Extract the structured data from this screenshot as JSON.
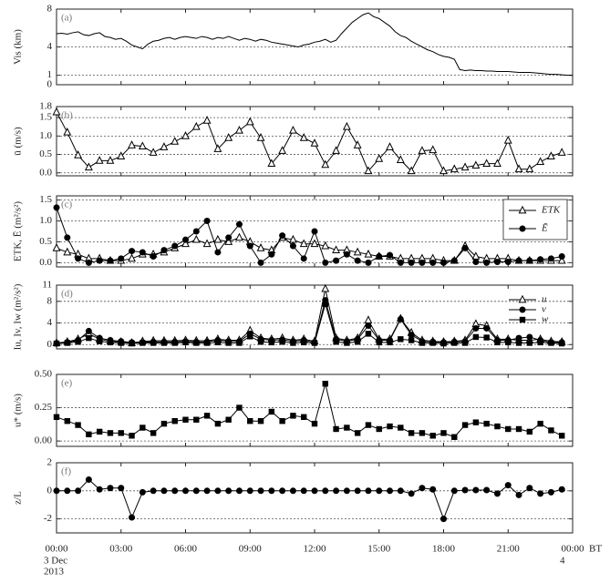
{
  "x_axis": {
    "xlim": [
      0,
      24
    ],
    "xticks": [
      {
        "value": 0,
        "label": "00:00"
      },
      {
        "value": 3,
        "label": "03:00"
      },
      {
        "value": 6,
        "label": "06:00"
      },
      {
        "value": 9,
        "label": "09:00"
      },
      {
        "value": 12,
        "label": "12:00"
      },
      {
        "value": 15,
        "label": "15:00"
      },
      {
        "value": 18,
        "label": "18:00"
      },
      {
        "value": 21,
        "label": "21:00"
      },
      {
        "value": 24,
        "label": "00:00"
      }
    ],
    "start_day": "3 Dec",
    "start_year": "2013",
    "end_day": "4",
    "unit": "BT"
  },
  "chart_data": [
    {
      "type": "line",
      "panel": "(a)",
      "ylabel": "Vis (km)",
      "color": "#000000",
      "ylim": [
        0,
        8
      ],
      "yticks": [
        0,
        1,
        4,
        8
      ],
      "grid": true,
      "x": [
        0,
        0.25,
        0.5,
        0.75,
        1,
        1.25,
        1.5,
        1.75,
        2,
        2.25,
        2.5,
        2.75,
        3,
        3.25,
        3.5,
        3.75,
        4,
        4.25,
        4.5,
        4.75,
        5,
        5.25,
        5.5,
        5.75,
        6,
        6.25,
        6.5,
        6.75,
        7,
        7.25,
        7.5,
        7.75,
        8,
        8.25,
        8.5,
        8.75,
        9,
        9.25,
        9.5,
        9.75,
        10,
        10.25,
        10.5,
        10.75,
        11,
        11.25,
        11.5,
        11.75,
        12,
        12.25,
        12.5,
        12.75,
        13,
        13.25,
        13.5,
        13.75,
        14,
        14.25,
        14.5,
        14.75,
        15,
        15.25,
        15.5,
        15.75,
        16,
        16.25,
        16.5,
        16.75,
        17,
        17.25,
        17.5,
        17.75,
        18,
        18.25,
        18.5,
        18.75,
        19,
        19.25,
        19.5,
        19.75,
        20,
        20.25,
        20.5,
        20.75,
        21,
        21.25,
        21.5,
        21.75,
        22,
        22.25,
        22.5,
        22.75,
        23,
        23.25,
        23.5,
        23.75,
        24
      ],
      "values": [
        5.4,
        5.45,
        5.35,
        5.5,
        5.6,
        5.3,
        5.2,
        5.4,
        5.5,
        5.1,
        5.0,
        4.8,
        4.9,
        4.6,
        4.2,
        4.0,
        3.8,
        4.3,
        4.6,
        4.7,
        4.9,
        5.0,
        4.8,
        5.0,
        5.1,
        5.0,
        4.9,
        5.1,
        5.0,
        4.8,
        5.0,
        4.9,
        5.1,
        4.9,
        4.7,
        4.9,
        4.8,
        4.6,
        4.8,
        4.7,
        4.5,
        4.4,
        4.3,
        4.2,
        4.1,
        4.0,
        4.2,
        4.3,
        4.5,
        4.6,
        4.8,
        4.5,
        4.7,
        5.4,
        6.0,
        6.6,
        7.0,
        7.4,
        7.6,
        7.2,
        7.0,
        6.6,
        6.2,
        5.6,
        5.2,
        5.0,
        4.6,
        4.3,
        4.0,
        3.7,
        3.5,
        3.2,
        3.0,
        2.9,
        2.7,
        1.6,
        1.5,
        1.55,
        1.5,
        1.5,
        1.45,
        1.45,
        1.4,
        1.4,
        1.4,
        1.35,
        1.3,
        1.3,
        1.3,
        1.25,
        1.2,
        1.15,
        1.1,
        1.1,
        1.05,
        1.0,
        1.0
      ]
    },
    {
      "type": "line",
      "panel": "(b)",
      "ylabel": "ū (m/s)",
      "color": "#000000",
      "marker": "triangle",
      "ylim": [
        -0.08,
        1.8
      ],
      "yticks": [
        {
          "value": 0,
          "label": "0.0"
        },
        {
          "value": 0.5,
          "label": "0.5"
        },
        {
          "value": 1,
          "label": "1.0"
        },
        {
          "value": 1.5,
          "label": "1.5"
        },
        {
          "value": 1.8,
          "label": "1.8"
        }
      ],
      "grid": true,
      "x": [
        0,
        0.5,
        1,
        1.5,
        2,
        2.5,
        3,
        3.5,
        4,
        4.5,
        5,
        5.5,
        6,
        6.5,
        7,
        7.5,
        8,
        8.5,
        9,
        9.5,
        10,
        10.5,
        11,
        11.5,
        12,
        12.5,
        13,
        13.5,
        14,
        14.5,
        15,
        15.5,
        16,
        16.5,
        17,
        17.5,
        18,
        18.5,
        19,
        19.5,
        20,
        20.5,
        21,
        21.5,
        22,
        22.5,
        23,
        23.5
      ],
      "values": [
        1.65,
        1.1,
        0.48,
        0.15,
        0.33,
        0.33,
        0.45,
        0.75,
        0.72,
        0.55,
        0.7,
        0.85,
        1.0,
        1.25,
        1.42,
        0.65,
        0.95,
        1.15,
        1.38,
        0.95,
        0.25,
        0.6,
        1.15,
        0.95,
        0.8,
        0.22,
        0.6,
        1.25,
        0.75,
        0.05,
        0.38,
        0.7,
        0.35,
        0.05,
        0.6,
        0.62,
        0.05,
        0.1,
        0.15,
        0.2,
        0.25,
        0.25,
        0.88,
        0.1,
        0.1,
        0.3,
        0.45,
        0.55
      ]
    },
    {
      "type": "line",
      "panel": "(c)",
      "ylabel": "ETK, Ē (m²/s²)",
      "legend": "upper right",
      "legend_box": true,
      "ylim": [
        -0.1,
        1.6
      ],
      "yticks": [
        {
          "value": 0,
          "label": "0.0"
        },
        {
          "value": 0.5,
          "label": "0.5"
        },
        {
          "value": 1,
          "label": "1.0"
        },
        {
          "value": 1.5,
          "label": "1.5"
        }
      ],
      "grid": true,
      "x": [
        0,
        0.5,
        1,
        1.5,
        2,
        2.5,
        3,
        3.5,
        4,
        4.5,
        5,
        5.5,
        6,
        6.5,
        7,
        7.5,
        8,
        8.5,
        9,
        9.5,
        10,
        10.5,
        11,
        11.5,
        12,
        12.5,
        13,
        13.5,
        14,
        14.5,
        15,
        15.5,
        16,
        16.5,
        17,
        17.5,
        18,
        18.5,
        19,
        19.5,
        20,
        20.5,
        21,
        21.5,
        22,
        22.5,
        23,
        23.5
      ],
      "series": [
        {
          "name": "ETK",
          "color": "#000000",
          "marker": "triangle",
          "values": [
            0.35,
            0.25,
            0.2,
            0.1,
            0.1,
            0.05,
            0.05,
            0.1,
            0.2,
            0.2,
            0.25,
            0.35,
            0.45,
            0.55,
            0.45,
            0.55,
            0.5,
            0.6,
            0.5,
            0.35,
            0.3,
            0.6,
            0.55,
            0.45,
            0.45,
            0.4,
            0.3,
            0.3,
            0.25,
            0.2,
            0.15,
            0.15,
            0.1,
            0.1,
            0.1,
            0.1,
            0.05,
            0.05,
            0.4,
            0.15,
            0.1,
            0.1,
            0.1,
            0.05,
            0.05,
            0.05,
            0.05,
            0.05
          ]
        },
        {
          "name": "Ē",
          "color": "#000000",
          "marker": "circle",
          "values": [
            1.32,
            0.6,
            0.1,
            0.0,
            0.05,
            0.05,
            0.1,
            0.28,
            0.25,
            0.15,
            0.3,
            0.4,
            0.55,
            0.75,
            1.0,
            0.25,
            0.6,
            0.92,
            0.4,
            0.0,
            0.2,
            0.65,
            0.4,
            0.1,
            0.75,
            0.0,
            0.05,
            0.2,
            0.05,
            0.0,
            0.15,
            0.18,
            0,
            0,
            0,
            0,
            0,
            0.05,
            0.35,
            0.02,
            0.0,
            0.02,
            0.02,
            0.05,
            0.05,
            0.08,
            0.1,
            0.15
          ]
        }
      ]
    },
    {
      "type": "line",
      "panel": "(d)",
      "ylabel": "Iu, Iv, Iw (m²/s²)",
      "legend": "upper right",
      "legend_box": false,
      "ylim": [
        -0.8,
        11
      ],
      "yticks": [
        0,
        4,
        8,
        11
      ],
      "grid": true,
      "x": [
        0,
        0.5,
        1,
        1.5,
        2,
        2.5,
        3,
        3.5,
        4,
        4.5,
        5,
        5.5,
        6,
        6.5,
        7,
        7.5,
        8,
        8.5,
        9,
        9.5,
        10,
        10.5,
        11,
        11.5,
        12,
        12.5,
        13,
        13.5,
        14,
        14.5,
        15,
        15.5,
        16,
        16.5,
        17,
        17.5,
        18,
        18.5,
        19,
        19.5,
        20,
        20.5,
        21,
        21.5,
        22,
        22.5,
        23,
        23.5
      ],
      "series": [
        {
          "name": "u",
          "color": "#000000",
          "marker": "triangle",
          "values": [
            0.3,
            0.5,
            1.0,
            2.0,
            1.0,
            0.6,
            0.5,
            0.3,
            0.6,
            0.7,
            0.7,
            0.7,
            0.8,
            0.7,
            0.7,
            1.0,
            0.8,
            0.8,
            2.6,
            1.2,
            1.0,
            1.2,
            0.8,
            1.0,
            0.6,
            10.3,
            1.2,
            0.8,
            1.2,
            4.5,
            1.0,
            1.0,
            4.8,
            2.2,
            0.8,
            0.6,
            0.5,
            0.6,
            0.8,
            3.8,
            3.5,
            1.0,
            1.0,
            0.8,
            0.8,
            1.0,
            0.6,
            0.5
          ]
        },
        {
          "name": "v",
          "color": "#000000",
          "marker": "circle",
          "values": [
            0.2,
            0.4,
            0.8,
            2.5,
            1.2,
            0.8,
            0.6,
            0.4,
            0.4,
            0.5,
            0.5,
            0.5,
            0.6,
            0.5,
            0.5,
            0.8,
            0.6,
            0.6,
            2.0,
            1.0,
            0.8,
            0.9,
            0.6,
            0.8,
            0.4,
            8.2,
            1.0,
            0.6,
            1.0,
            3.5,
            0.8,
            0.8,
            4.7,
            1.8,
            0.6,
            0.5,
            0.4,
            0.5,
            0.6,
            3.0,
            3.0,
            0.8,
            0.8,
            1.2,
            1.4,
            0.8,
            0.4,
            0.4
          ]
        },
        {
          "name": "w",
          "color": "#000000",
          "marker": "square",
          "values": [
            0.2,
            0.3,
            0.5,
            1.2,
            0.6,
            0.4,
            0.3,
            0.2,
            0.3,
            0.3,
            0.3,
            0.3,
            0.4,
            0.3,
            0.3,
            0.4,
            0.3,
            0.3,
            1.5,
            0.5,
            0.4,
            0.5,
            0.3,
            0.4,
            0.3,
            7.5,
            0.5,
            0.3,
            0.5,
            2.0,
            0.4,
            0.4,
            1.0,
            0.8,
            0.3,
            0.3,
            0.2,
            0.3,
            0.3,
            1.4,
            1.3,
            0.4,
            0.4,
            0.3,
            0.3,
            0.4,
            0.3,
            0.2
          ]
        }
      ]
    },
    {
      "type": "line",
      "panel": "(e)",
      "ylabel": "u* (m/s)",
      "color": "#000000",
      "marker": "square",
      "ylim": [
        -0.04,
        0.5
      ],
      "yticks": [
        {
          "value": 0,
          "label": "0.00"
        },
        {
          "value": 0.25,
          "label": "0.25"
        },
        {
          "value": 0.5,
          "label": "0.50"
        }
      ],
      "grid": true,
      "x": [
        0,
        0.5,
        1,
        1.5,
        2,
        2.5,
        3,
        3.5,
        4,
        4.5,
        5,
        5.5,
        6,
        6.5,
        7,
        7.5,
        8,
        8.5,
        9,
        9.5,
        10,
        10.5,
        11,
        11.5,
        12,
        12.5,
        13,
        13.5,
        14,
        14.5,
        15,
        15.5,
        16,
        16.5,
        17,
        17.5,
        18,
        18.5,
        19,
        19.5,
        20,
        20.5,
        21,
        21.5,
        22,
        22.5,
        23,
        23.5
      ],
      "values": [
        0.18,
        0.15,
        0.12,
        0.05,
        0.07,
        0.06,
        0.06,
        0.04,
        0.1,
        0.06,
        0.13,
        0.15,
        0.16,
        0.16,
        0.19,
        0.13,
        0.16,
        0.25,
        0.15,
        0.15,
        0.22,
        0.15,
        0.19,
        0.18,
        0.13,
        0.43,
        0.09,
        0.1,
        0.06,
        0.12,
        0.09,
        0.11,
        0.1,
        0.06,
        0.06,
        0.04,
        0.06,
        0.03,
        0.12,
        0.14,
        0.13,
        0.11,
        0.09,
        0.09,
        0.07,
        0.13,
        0.08,
        0.04
      ]
    },
    {
      "type": "line",
      "panel": "(f)",
      "ylabel": "z/L",
      "color": "#000000",
      "marker": "circle",
      "ylim": [
        -3,
        2
      ],
      "yticks": [
        -2,
        0,
        2
      ],
      "grid": true,
      "x": [
        0,
        0.5,
        1,
        1.5,
        2,
        2.5,
        3,
        3.5,
        4,
        4.5,
        5,
        5.5,
        6,
        6.5,
        7,
        7.5,
        8,
        8.5,
        9,
        9.5,
        10,
        10.5,
        11,
        11.5,
        12,
        12.5,
        13,
        13.5,
        14,
        14.5,
        15,
        15.5,
        16,
        16.5,
        17,
        17.5,
        18,
        18.5,
        19,
        19.5,
        20,
        20.5,
        21,
        21.5,
        22,
        22.5,
        23,
        23.5
      ],
      "values": [
        0,
        0,
        0,
        0.8,
        0.1,
        0.2,
        0.2,
        -1.9,
        -0.1,
        0,
        0,
        0,
        0,
        0,
        0,
        0,
        0,
        0,
        0,
        0,
        0,
        0,
        0,
        0,
        0,
        0,
        0,
        0,
        0,
        0,
        0,
        0,
        0,
        -0.2,
        0.2,
        0.1,
        -2.0,
        0,
        0.05,
        0.05,
        0.05,
        -0.2,
        0.4,
        -0.3,
        0.2,
        -0.2,
        -0.1,
        0.1
      ]
    }
  ]
}
